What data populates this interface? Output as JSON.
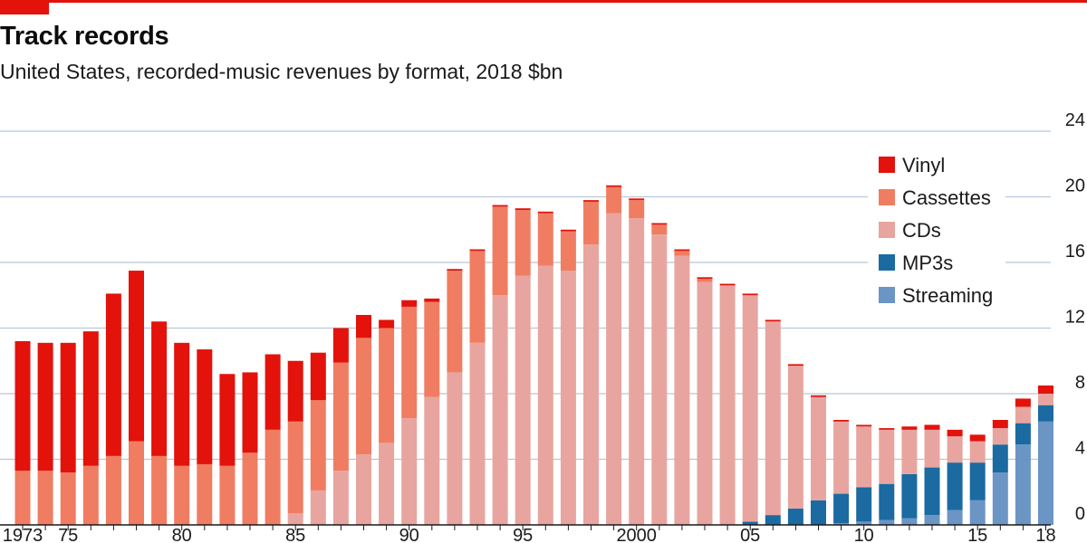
{
  "title": "Track records",
  "subtitle": "United States, recorded-music revenues by format, 2018 $bn",
  "colors": {
    "vinyl": "#e3120b",
    "cassettes": "#f07d62",
    "cds": "#e8a5a0",
    "mp3s": "#1b6aa2",
    "streaming": "#6b95c5",
    "grid": "#b8c8d8",
    "accent": "#e3120b"
  },
  "chart_data": {
    "type": "bar",
    "stacked": true,
    "title": "Track records",
    "subtitle": "United States, recorded-music revenues by format, 2018 $bn",
    "xlabel": "",
    "ylabel": "",
    "ylim": [
      0,
      24
    ],
    "yticks": [
      0,
      4,
      8,
      12,
      16,
      20,
      24
    ],
    "grid": true,
    "legend_position": "top-right",
    "categories": [
      1973,
      1974,
      1975,
      1976,
      1977,
      1978,
      1979,
      1980,
      1981,
      1982,
      1983,
      1984,
      1985,
      1986,
      1987,
      1988,
      1989,
      1990,
      1991,
      1992,
      1993,
      1994,
      1995,
      1996,
      1997,
      1998,
      1999,
      2000,
      2001,
      2002,
      2003,
      2004,
      2005,
      2006,
      2007,
      2008,
      2009,
      2010,
      2011,
      2012,
      2013,
      2014,
      2015,
      2016,
      2017,
      2018
    ],
    "xtick_labels": [
      {
        "year": 1973,
        "label": "1973"
      },
      {
        "year": 1975,
        "label": "75"
      },
      {
        "year": 1980,
        "label": "80"
      },
      {
        "year": 1985,
        "label": "85"
      },
      {
        "year": 1990,
        "label": "90"
      },
      {
        "year": 1995,
        "label": "95"
      },
      {
        "year": 2000,
        "label": "2000"
      },
      {
        "year": 2005,
        "label": "05"
      },
      {
        "year": 2010,
        "label": "10"
      },
      {
        "year": 2015,
        "label": "15"
      },
      {
        "year": 2018,
        "label": "18"
      }
    ],
    "series": [
      {
        "key": "streaming",
        "name": "Streaming",
        "values": [
          0,
          0,
          0,
          0,
          0,
          0,
          0,
          0,
          0,
          0,
          0,
          0,
          0,
          0,
          0,
          0,
          0,
          0,
          0,
          0,
          0,
          0,
          0,
          0,
          0,
          0,
          0,
          0,
          0,
          0,
          0,
          0,
          0,
          0,
          0,
          0,
          0.1,
          0.2,
          0.3,
          0.4,
          0.6,
          0.9,
          1.5,
          3.2,
          4.9,
          6.3
        ]
      },
      {
        "key": "mp3s",
        "name": "MP3s",
        "values": [
          0,
          0,
          0,
          0,
          0,
          0,
          0,
          0,
          0,
          0,
          0,
          0,
          0,
          0,
          0,
          0,
          0,
          0,
          0,
          0,
          0,
          0,
          0,
          0,
          0,
          0,
          0,
          0,
          0,
          0,
          0,
          0,
          0.2,
          0.6,
          1.0,
          1.5,
          1.8,
          2.1,
          2.2,
          2.7,
          2.9,
          2.9,
          2.3,
          1.7,
          1.3,
          1.0
        ]
      },
      {
        "key": "cds",
        "name": "CDs",
        "values": [
          0,
          0,
          0,
          0,
          0,
          0,
          0,
          0,
          0,
          0,
          0,
          0,
          0.7,
          2.1,
          3.3,
          4.3,
          5.0,
          6.5,
          7.8,
          9.3,
          11.1,
          14.0,
          15.2,
          15.8,
          15.5,
          17.1,
          19.0,
          18.7,
          17.7,
          16.4,
          14.8,
          14.6,
          13.8,
          11.8,
          8.7,
          6.3,
          4.4,
          3.7,
          3.3,
          2.7,
          2.3,
          1.6,
          1.3,
          1.0,
          1.0,
          0.7
        ]
      },
      {
        "key": "cassettes",
        "name": "Cassettes",
        "values": [
          3.3,
          3.3,
          3.2,
          3.6,
          4.2,
          5.1,
          4.2,
          3.6,
          3.7,
          3.6,
          4.4,
          5.8,
          5.6,
          5.5,
          6.6,
          7.1,
          7.0,
          6.8,
          5.8,
          6.2,
          5.6,
          5.4,
          4.0,
          3.2,
          2.4,
          2.6,
          1.6,
          1.1,
          0.6,
          0.3,
          0.2,
          0,
          0,
          0,
          0,
          0,
          0,
          0,
          0,
          0,
          0,
          0,
          0,
          0,
          0,
          0
        ]
      },
      {
        "key": "vinyl",
        "name": "Vinyl",
        "values": [
          7.9,
          7.8,
          7.9,
          8.2,
          9.9,
          10.4,
          8.2,
          7.5,
          7.0,
          5.6,
          4.9,
          4.6,
          3.7,
          2.9,
          2.1,
          1.4,
          0.5,
          0.4,
          0.2,
          0.1,
          0.1,
          0.1,
          0.1,
          0.1,
          0.1,
          0.1,
          0.1,
          0.1,
          0.1,
          0.1,
          0.1,
          0.1,
          0.1,
          0.1,
          0.1,
          0.1,
          0.1,
          0.1,
          0.1,
          0.2,
          0.3,
          0.4,
          0.4,
          0.5,
          0.5,
          0.5
        ]
      }
    ],
    "legend": [
      "Vinyl",
      "Cassettes",
      "CDs",
      "MP3s",
      "Streaming"
    ]
  }
}
